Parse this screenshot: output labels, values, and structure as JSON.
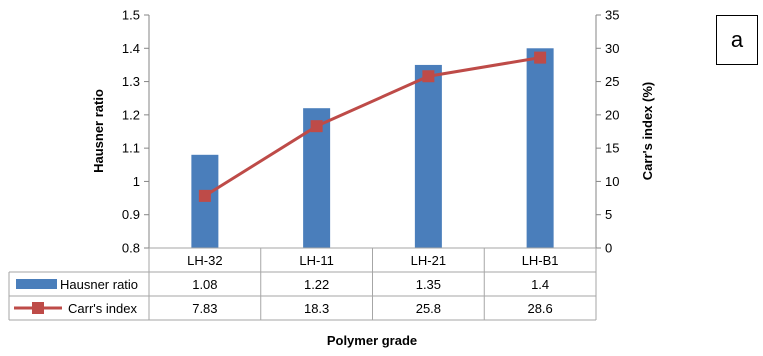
{
  "panel_label": "a",
  "chart_data": {
    "type": "bar+line",
    "categories": [
      "LH-32",
      "LH-11",
      "LH-21",
      "LH-B1"
    ],
    "xlabel": "Polymer grade",
    "series": [
      {
        "name": "Hausner ratio",
        "type": "bar",
        "axis": "left",
        "values": [
          1.08,
          1.22,
          1.35,
          1.4
        ],
        "table_values": [
          "1.08",
          "1.22",
          "1.35",
          "1.4"
        ],
        "color": "#4a7ebb"
      },
      {
        "name": "Carr's index",
        "type": "line",
        "axis": "right",
        "values": [
          7.83,
          18.3,
          25.8,
          28.6
        ],
        "table_values": [
          "7.83",
          "18.3",
          "25.8",
          "28.6"
        ],
        "color": "#be4b48"
      }
    ],
    "y_left": {
      "label": "Hausner ratio",
      "min": 0.8,
      "max": 1.5,
      "step": 0.1,
      "ticks": [
        "0.8",
        "0.9",
        "1",
        "1.1",
        "1.2",
        "1.3",
        "1.4",
        "1.5"
      ]
    },
    "y_right": {
      "label": "Carr's index (%)",
      "min": 0,
      "max": 35,
      "step": 5,
      "ticks": [
        "0",
        "5",
        "10",
        "15",
        "20",
        "25",
        "30",
        "35"
      ]
    },
    "grid": false,
    "legend": "data-table"
  }
}
